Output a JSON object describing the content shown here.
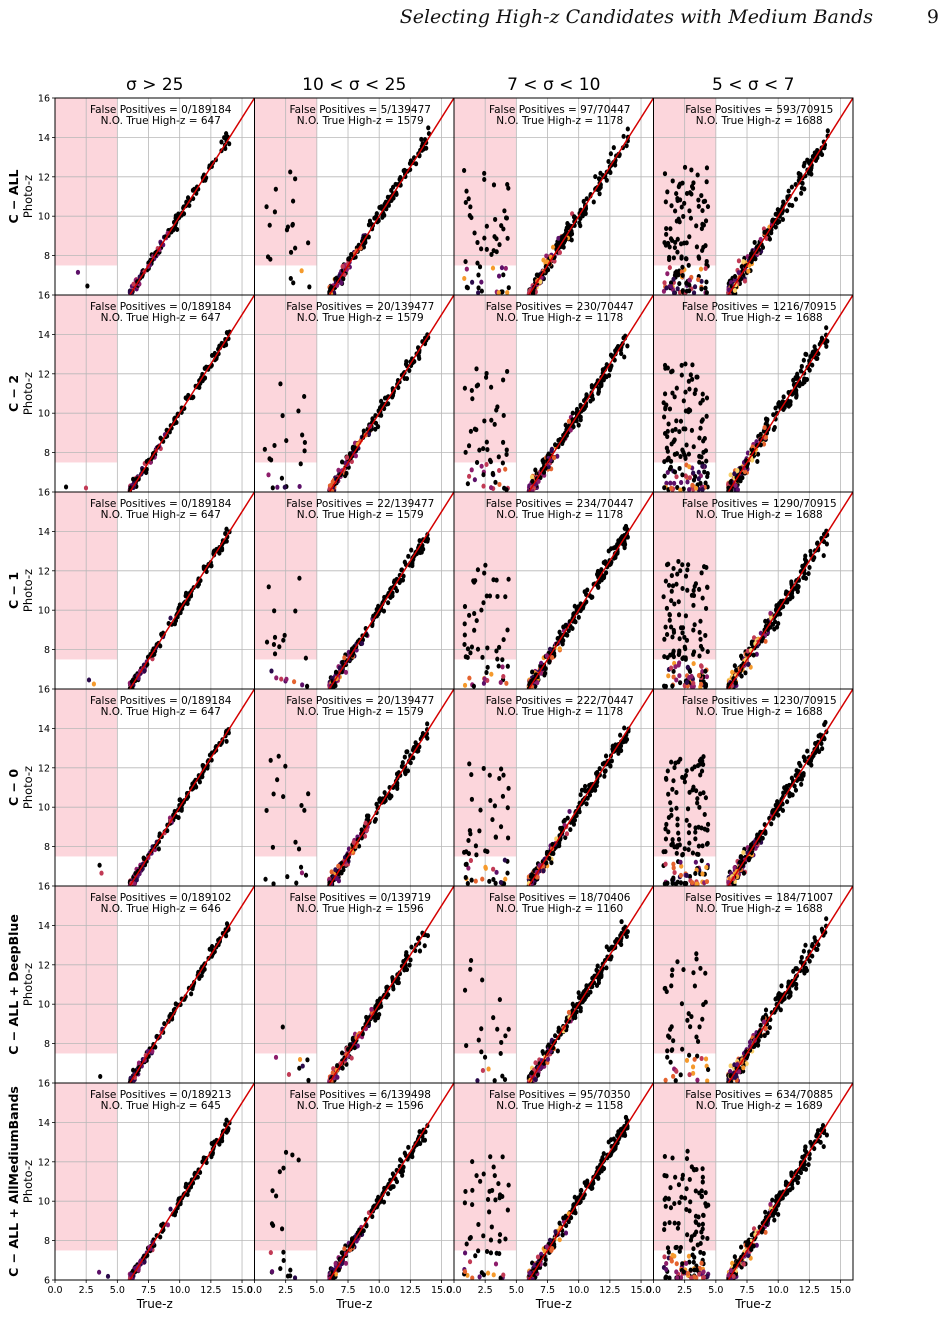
{
  "header": {
    "running_title": "Selecting High-z Candidates with Medium Bands",
    "page_number": "9"
  },
  "chart_data": {
    "type": "scatter",
    "description_grid": "6 rows (configurations) x 4 columns (S/N bins) of Photo-z vs True-z panels",
    "column_titles": [
      "σ > 25",
      "10 < σ < 25",
      "7 < σ < 10",
      "5 < σ < 7"
    ],
    "row_labels": [
      "C − ALL",
      "C − 2",
      "C − 1",
      "C − 0",
      "C − ALL + DeepBlue",
      "C − ALL + AllMediumBands"
    ],
    "xlabel": "True-z",
    "ylabel": "Photo-z",
    "xlim": [
      0,
      16
    ],
    "ylim_rows": [
      [
        6,
        16
      ],
      [
        6,
        16
      ],
      [
        6,
        16
      ],
      [
        6,
        16
      ],
      [
        6,
        16
      ],
      [
        6,
        16
      ]
    ],
    "x_ticks": [
      "0.0",
      "2.5",
      "5.0",
      "7.5",
      "10.0",
      "12.5",
      "15.0"
    ],
    "y_ticks": [
      "6",
      "8",
      "10",
      "12",
      "14",
      "16"
    ],
    "shaded_region": {
      "x_range": [
        0,
        5
      ],
      "y_range": [
        7.5,
        16
      ],
      "color": "#fcd6dc"
    },
    "one_to_one_line_color": "#d40000",
    "grid": true,
    "panel_labels": [
      [
        {
          "fp": "False Positives = 0/189184",
          "n": "N.O. True High-z = 647"
        },
        {
          "fp": "False Positives = 5/139477",
          "n": "N.O. True High-z = 1579"
        },
        {
          "fp": "False Positives = 97/70447",
          "n": "N.O. True High-z = 1178"
        },
        {
          "fp": "False Positives = 593/70915",
          "n": "N.O. True High-z = 1688"
        }
      ],
      [
        {
          "fp": "False Positives = 0/189184",
          "n": "N.O. True High-z = 647"
        },
        {
          "fp": "False Positives = 20/139477",
          "n": "N.O. True High-z = 1579"
        },
        {
          "fp": "False Positives = 230/70447",
          "n": "N.O. True High-z = 1178"
        },
        {
          "fp": "False Positives = 1216/70915",
          "n": "N.O. True High-z = 1688"
        }
      ],
      [
        {
          "fp": "False Positives = 0/189184",
          "n": "N.O. True High-z = 647"
        },
        {
          "fp": "False Positives = 22/139477",
          "n": "N.O. True High-z = 1579"
        },
        {
          "fp": "False Positives = 234/70447",
          "n": "N.O. True High-z = 1178"
        },
        {
          "fp": "False Positives = 1290/70915",
          "n": "N.O. True High-z = 1688"
        }
      ],
      [
        {
          "fp": "False Positives = 0/189184",
          "n": "N.O. True High-z = 647"
        },
        {
          "fp": "False Positives = 20/139477",
          "n": "N.O. True High-z = 1579"
        },
        {
          "fp": "False Positives = 222/70447",
          "n": "N.O. True High-z = 1178"
        },
        {
          "fp": "False Positives = 1230/70915",
          "n": "N.O. True High-z = 1688"
        }
      ],
      [
        {
          "fp": "False Positives = 0/189102",
          "n": "N.O. True High-z = 646"
        },
        {
          "fp": "False Positives = 0/139719",
          "n": "N.O. True High-z = 1596"
        },
        {
          "fp": "False Positives = 18/70406",
          "n": "N.O. True High-z = 1160"
        },
        {
          "fp": "False Positives = 184/71007",
          "n": "N.O. True High-z = 1688"
        }
      ],
      [
        {
          "fp": "False Positives = 0/189213",
          "n": "N.O. True High-z = 645"
        },
        {
          "fp": "False Positives = 6/139498",
          "n": "N.O. True High-z = 1596"
        },
        {
          "fp": "False Positives = 95/70350",
          "n": "N.O. True High-z = 1158"
        },
        {
          "fp": "False Positives = 634/70885",
          "n": "N.O. True High-z = 1689"
        }
      ]
    ]
  }
}
